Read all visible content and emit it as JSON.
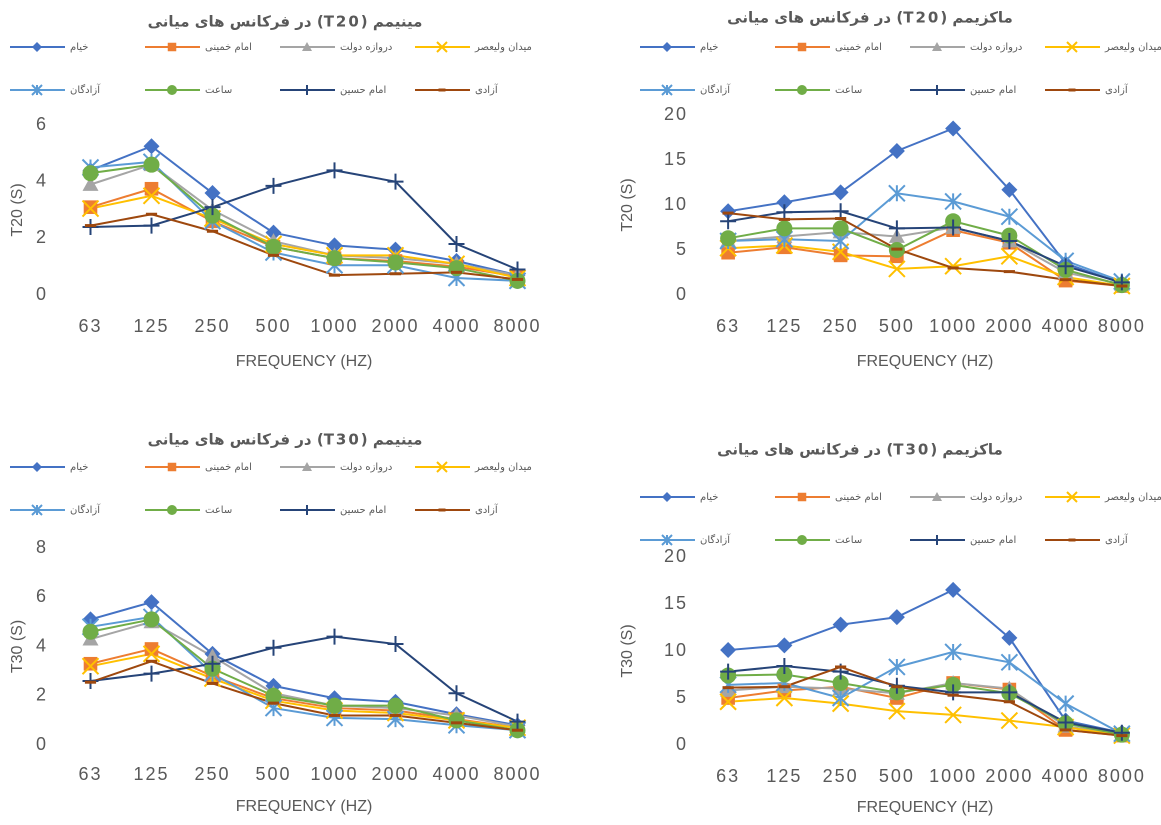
{
  "chart_data": [
    {
      "type": "line",
      "title": "مینیمم (T20) در فرکانس های میانی",
      "x_label": "FREQUENCY (HZ)",
      "y_label": "T20 (S)",
      "categories": [
        "63",
        "125",
        "250",
        "500",
        "1000",
        "2000",
        "4000",
        "8000"
      ],
      "ylim": [
        0,
        6
      ],
      "yticks": [
        0,
        2,
        4,
        6
      ],
      "series": [
        {
          "name": "خیام",
          "color": "#4472c4",
          "marker": "diamond",
          "values": [
            4.4,
            5.25,
            3.6,
            2.2,
            1.75,
            1.6,
            1.2,
            0.7
          ]
        },
        {
          "name": "امام خمینی",
          "color": "#ed7d31",
          "marker": "square",
          "values": [
            3.1,
            3.75,
            2.6,
            1.7,
            1.3,
            1.2,
            1.0,
            0.65
          ]
        },
        {
          "name": "دروازه دولت",
          "color": "#a5a5a5",
          "marker": "triangle",
          "values": [
            3.9,
            4.6,
            3.0,
            1.9,
            1.4,
            1.3,
            1.1,
            0.7
          ]
        },
        {
          "name": "میدان ولیعصر",
          "color": "#ffc000",
          "marker": "x",
          "values": [
            3.05,
            3.5,
            2.7,
            1.8,
            1.4,
            1.4,
            1.1,
            0.6
          ]
        },
        {
          "name": "آزادگان",
          "color": "#5b9bd5",
          "marker": "star",
          "values": [
            4.5,
            4.7,
            2.6,
            1.5,
            1.05,
            1.05,
            0.6,
            0.5
          ]
        },
        {
          "name": "ساعت",
          "color": "#70ad47",
          "marker": "circle",
          "values": [
            4.3,
            4.6,
            2.8,
            1.7,
            1.3,
            1.15,
            0.95,
            0.5
          ]
        },
        {
          "name": "امام حسین",
          "color": "#264478",
          "marker": "plus",
          "values": [
            2.4,
            2.45,
            3.1,
            3.85,
            4.4,
            4.0,
            1.8,
            0.9
          ]
        },
        {
          "name": "آزادی",
          "color": "#9e480e",
          "marker": "dash",
          "values": [
            2.45,
            2.85,
            2.25,
            1.4,
            0.7,
            0.75,
            0.8,
            0.55
          ]
        }
      ]
    },
    {
      "type": "line",
      "title": "ماکزیمم (T20) در فرکانس های میانی",
      "x_label": "FREQUENCY (HZ)",
      "y_label": "T20 (S)",
      "categories": [
        "63",
        "125",
        "250",
        "500",
        "1000",
        "2000",
        "4000",
        "8000"
      ],
      "ylim": [
        0,
        20
      ],
      "yticks": [
        0,
        5,
        10,
        15,
        20
      ],
      "series": [
        {
          "name": "خیام",
          "color": "#4472c4",
          "marker": "diamond",
          "values": [
            9.3,
            10.3,
            11.4,
            16.0,
            18.5,
            11.7,
            3.5,
            1.3
          ]
        },
        {
          "name": "امام خمینی",
          "color": "#ed7d31",
          "marker": "square",
          "values": [
            4.7,
            5.3,
            4.4,
            4.3,
            7.2,
            5.8,
            1.6,
            1.0
          ]
        },
        {
          "name": "دروازه دولت",
          "color": "#a5a5a5",
          "marker": "triangle",
          "values": [
            6.0,
            6.5,
            7.0,
            6.5,
            7.5,
            6.0,
            2.5,
            1.2
          ]
        },
        {
          "name": "میدان ولیعصر",
          "color": "#ffc000",
          "marker": "x",
          "values": [
            5.2,
            5.5,
            4.8,
            2.9,
            3.2,
            4.3,
            2.0,
            1.0
          ]
        },
        {
          "name": "آزادگان",
          "color": "#5b9bd5",
          "marker": "star",
          "values": [
            6.0,
            6.2,
            6.0,
            11.3,
            10.4,
            8.7,
            3.8,
            1.5
          ]
        },
        {
          "name": "ساعت",
          "color": "#70ad47",
          "marker": "circle",
          "values": [
            6.3,
            7.4,
            7.4,
            5.0,
            8.2,
            6.6,
            2.8,
            1.1
          ]
        },
        {
          "name": "امام حسین",
          "color": "#264478",
          "marker": "plus",
          "values": [
            8.2,
            9.2,
            9.3,
            7.4,
            7.5,
            6.0,
            3.2,
            1.4
          ]
        },
        {
          "name": "آزادی",
          "color": "#9e480e",
          "marker": "dash",
          "values": [
            9.1,
            8.4,
            8.5,
            5.1,
            3.0,
            2.6,
            1.7,
            1.0
          ]
        }
      ]
    },
    {
      "type": "line",
      "title": "مینیمم (T30) در فرکانس های میانی",
      "x_label": "FREQUENCY (HZ)",
      "y_label": "T30 (S)",
      "categories": [
        "63",
        "125",
        "250",
        "500",
        "1000",
        "2000",
        "4000",
        "8000"
      ],
      "ylim": [
        0,
        8
      ],
      "yticks": [
        0,
        2,
        4,
        6,
        8
      ],
      "series": [
        {
          "name": "خیام",
          "color": "#4472c4",
          "marker": "diamond",
          "values": [
            5.1,
            5.8,
            3.7,
            2.4,
            1.9,
            1.75,
            1.25,
            0.8
          ]
        },
        {
          "name": "امام خمینی",
          "color": "#ed7d31",
          "marker": "square",
          "values": [
            3.3,
            3.9,
            2.8,
            1.9,
            1.5,
            1.4,
            1.05,
            0.7
          ]
        },
        {
          "name": "دروازه دولت",
          "color": "#a5a5a5",
          "marker": "triangle",
          "values": [
            4.3,
            5.0,
            3.6,
            2.1,
            1.6,
            1.5,
            1.2,
            0.75
          ]
        },
        {
          "name": "میدان ولیعصر",
          "color": "#ffc000",
          "marker": "x",
          "values": [
            3.2,
            3.7,
            2.7,
            1.8,
            1.4,
            1.3,
            1.0,
            0.7
          ]
        },
        {
          "name": "آزادگان",
          "color": "#5b9bd5",
          "marker": "star",
          "values": [
            4.8,
            5.2,
            2.9,
            1.5,
            1.1,
            1.05,
            0.8,
            0.6
          ]
        },
        {
          "name": "ساعت",
          "color": "#70ad47",
          "marker": "circle",
          "values": [
            4.6,
            5.1,
            3.1,
            2.0,
            1.6,
            1.6,
            1.0,
            0.6
          ]
        },
        {
          "name": "امام حسین",
          "color": "#264478",
          "marker": "plus",
          "values": [
            2.6,
            2.9,
            3.3,
            3.95,
            4.4,
            4.1,
            2.1,
            0.95
          ]
        },
        {
          "name": "آزادی",
          "color": "#9e480e",
          "marker": "dash",
          "values": [
            2.55,
            3.4,
            2.5,
            1.7,
            1.2,
            1.2,
            0.9,
            0.6
          ]
        }
      ]
    },
    {
      "type": "line",
      "title": "ماکزیمم (T30) در فرکانس های میانی",
      "x_label": "FREQUENCY (HZ)",
      "y_label": "T30 (S)",
      "categories": [
        "63",
        "125",
        "250",
        "500",
        "1000",
        "2000",
        "4000",
        "8000"
      ],
      "ylim": [
        0,
        20
      ],
      "yticks": [
        0,
        5,
        10,
        15,
        20
      ],
      "series": [
        {
          "name": "خیام",
          "color": "#4472c4",
          "marker": "diamond",
          "values": [
            10.1,
            10.6,
            12.8,
            13.6,
            16.5,
            11.4,
            2.6,
            1.3
          ]
        },
        {
          "name": "امام خمینی",
          "color": "#ed7d31",
          "marker": "square",
          "values": [
            5.0,
            5.8,
            6.2,
            5.0,
            6.6,
            5.9,
            1.6,
            1.0
          ]
        },
        {
          "name": "دروازه دولت",
          "color": "#a5a5a5",
          "marker": "triangle",
          "values": [
            5.8,
            6.2,
            6.0,
            5.5,
            6.6,
            6.0,
            2.0,
            1.1
          ]
        },
        {
          "name": "میدان ولیعصر",
          "color": "#ffc000",
          "marker": "x",
          "values": [
            4.6,
            5.0,
            4.4,
            3.6,
            3.2,
            2.6,
            1.9,
            1.0
          ]
        },
        {
          "name": "آزادگان",
          "color": "#5b9bd5",
          "marker": "star",
          "values": [
            6.4,
            6.6,
            5.0,
            8.3,
            9.9,
            8.8,
            4.4,
            1.2
          ]
        },
        {
          "name": "ساعت",
          "color": "#70ad47",
          "marker": "circle",
          "values": [
            7.4,
            7.5,
            6.6,
            5.6,
            6.4,
            5.5,
            2.3,
            1.1
          ]
        },
        {
          "name": "امام حسین",
          "color": "#264478",
          "marker": "plus",
          "values": [
            7.8,
            8.4,
            7.8,
            6.3,
            5.6,
            5.6,
            2.4,
            1.3
          ]
        },
        {
          "name": "آزادی",
          "color": "#9e480e",
          "marker": "dash",
          "values": [
            6.1,
            6.2,
            8.3,
            6.2,
            5.3,
            4.6,
            1.6,
            1.0
          ]
        }
      ]
    }
  ]
}
